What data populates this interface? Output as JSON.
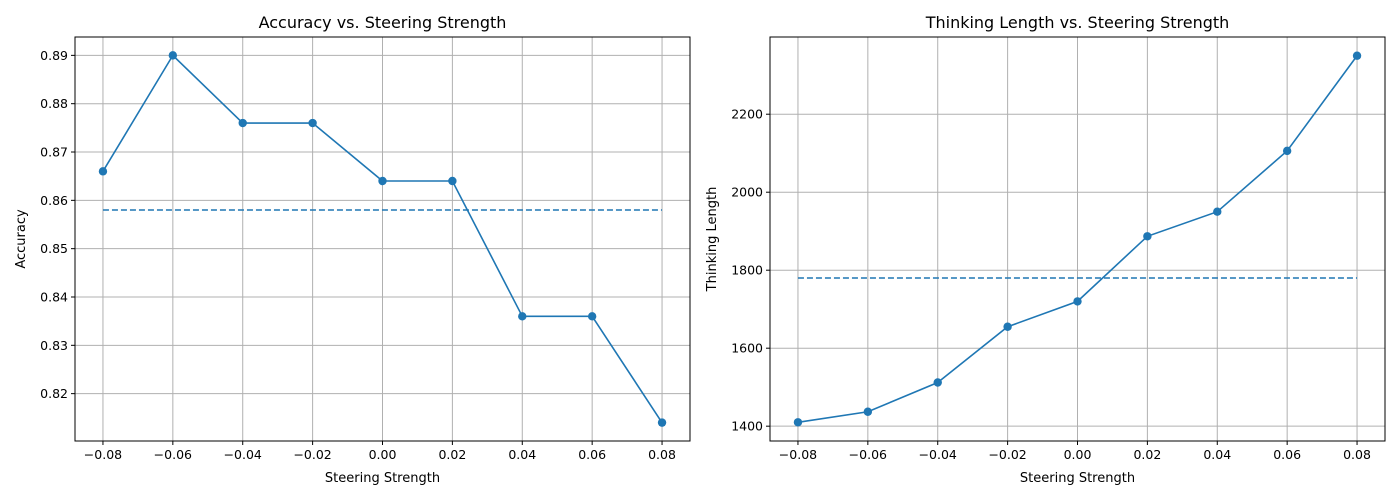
{
  "chart_data": [
    {
      "type": "line",
      "title": "Accuracy vs. Steering Strength",
      "xlabel": "Steering Strength",
      "ylabel": "Accuracy",
      "x": [
        -0.08,
        -0.06,
        -0.04,
        -0.02,
        0.0,
        0.02,
        0.04,
        0.06,
        0.08
      ],
      "x_tick_labels": [
        "−0.08",
        "−0.06",
        "−0.04",
        "−0.02",
        "0.00",
        "0.02",
        "0.04",
        "0.06",
        "0.08"
      ],
      "y_ticks": [
        0.82,
        0.83,
        0.84,
        0.85,
        0.86,
        0.87,
        0.88,
        0.89
      ],
      "y_tick_labels": [
        "0.82",
        "0.83",
        "0.84",
        "0.85",
        "0.86",
        "0.87",
        "0.88",
        "0.89"
      ],
      "xlim": [
        -0.088,
        0.088
      ],
      "ylim": [
        0.8102,
        0.8938
      ],
      "grid": true,
      "series": [
        {
          "style": "solid-markers",
          "color": "#1f77b4",
          "values": [
            0.866,
            0.89,
            0.876,
            0.876,
            0.864,
            0.864,
            0.836,
            0.836,
            0.814
          ]
        },
        {
          "style": "dashed",
          "color": "#1f77b4",
          "values": [
            0.858,
            0.858,
            0.858,
            0.858,
            0.858,
            0.858,
            0.858,
            0.858,
            0.858
          ]
        }
      ]
    },
    {
      "type": "line",
      "title": "Thinking Length vs. Steering Strength",
      "xlabel": "Steering Strength",
      "ylabel": "Thinking Length",
      "x": [
        -0.08,
        -0.06,
        -0.04,
        -0.02,
        0.0,
        0.02,
        0.04,
        0.06,
        0.08
      ],
      "x_tick_labels": [
        "−0.08",
        "−0.06",
        "−0.04",
        "−0.02",
        "0.00",
        "0.02",
        "0.04",
        "0.06",
        "0.08"
      ],
      "y_ticks": [
        1400,
        1600,
        1800,
        2000,
        2200
      ],
      "y_tick_labels": [
        "1400",
        "1600",
        "1800",
        "2000",
        "2200"
      ],
      "xlim": [
        -0.088,
        0.088
      ],
      "ylim": [
        1362,
        2398
      ],
      "grid": true,
      "series": [
        {
          "style": "solid-markers",
          "color": "#1f77b4",
          "values": [
            1410,
            1437,
            1512,
            1655,
            1720,
            1887,
            1950,
            2106,
            2350
          ]
        },
        {
          "style": "dashed",
          "color": "#1f77b4",
          "values": [
            1780,
            1780,
            1780,
            1780,
            1780,
            1780,
            1780,
            1780,
            1780
          ]
        }
      ]
    }
  ]
}
